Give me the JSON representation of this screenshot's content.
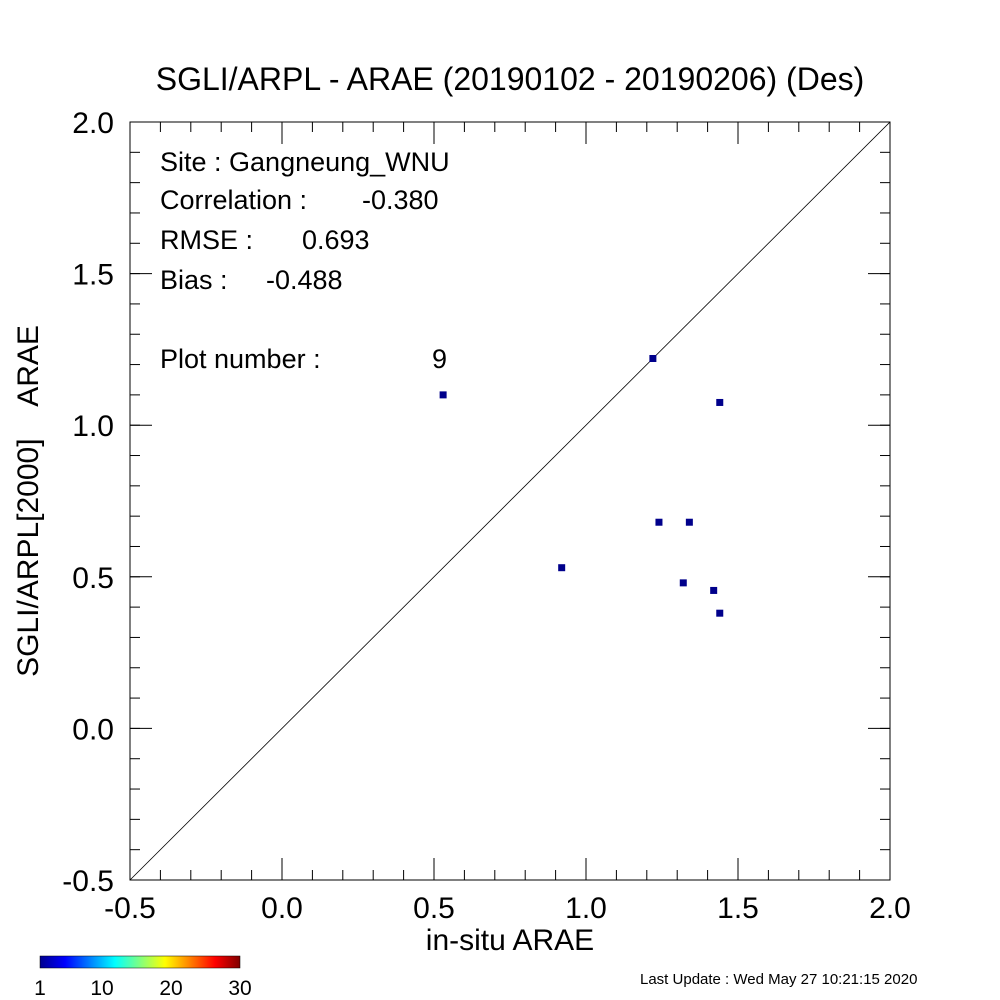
{
  "chart_data": {
    "type": "scatter",
    "title": "SGLI/ARPL - ARAE (20190102 - 20190206) (Des)",
    "xlabel": "in-situ ARAE",
    "ylabel": "SGLI/ARPL[2000]    ARAE",
    "xlim": [
      -0.5,
      2.0
    ],
    "ylim": [
      -0.5,
      2.0
    ],
    "x_ticks": [
      "-0.5",
      "0.0",
      "0.5",
      "1.0",
      "1.5",
      "2.0"
    ],
    "y_ticks": [
      "-0.5",
      "0.0",
      "0.5",
      "1.0",
      "1.5",
      "2.0"
    ],
    "reference_line": "1:1",
    "point_color": "#00008b",
    "points": [
      {
        "x": 0.53,
        "y": 1.1
      },
      {
        "x": 0.92,
        "y": 0.53
      },
      {
        "x": 1.22,
        "y": 1.22
      },
      {
        "x": 1.24,
        "y": 0.68
      },
      {
        "x": 1.32,
        "y": 0.48
      },
      {
        "x": 1.34,
        "y": 0.68
      },
      {
        "x": 1.42,
        "y": 0.455
      },
      {
        "x": 1.44,
        "y": 1.075
      },
      {
        "x": 1.44,
        "y": 0.38
      }
    ],
    "stats": {
      "site_label": "Site : Gangneung_WNU",
      "correlation_label": "Correlation :",
      "correlation_value": "-0.380",
      "rmse_label": "RMSE :",
      "rmse_value": "0.693",
      "bias_label": "Bias :",
      "bias_value": "-0.488",
      "plot_number_label": "Plot number :",
      "plot_number_value": "9"
    },
    "colorbar": {
      "tick_labels": [
        "1",
        "10",
        "20",
        "30"
      ],
      "tick_values": [
        1,
        10,
        20,
        30
      ],
      "range": [
        1,
        30
      ],
      "colormap": [
        "#00008f",
        "#0000ff",
        "#0080ff",
        "#00ffff",
        "#80ff80",
        "#ffff00",
        "#ff8000",
        "#ff0000",
        "#800000"
      ]
    }
  },
  "footer": {
    "last_update": "Last Update : Wed May 27 10:21:15 2020"
  }
}
